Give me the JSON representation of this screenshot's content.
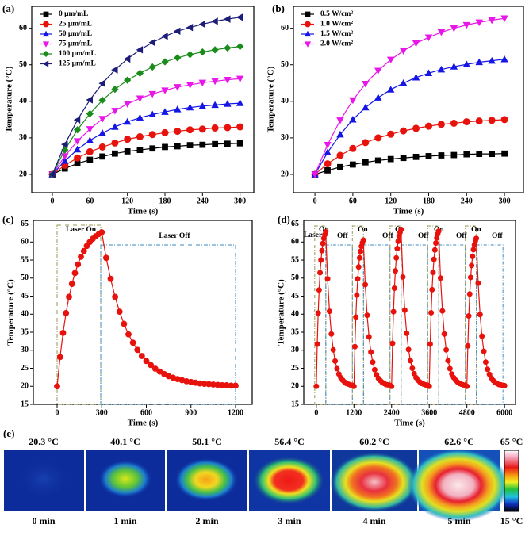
{
  "chart_data": [
    {
      "type": "line",
      "panel_label": "(a)",
      "x_label": "Time (s)",
      "y_label": "Temperature (°C)",
      "xlim": [
        -33,
        322
      ],
      "ylim": [
        15,
        66
      ],
      "xticks": [
        0,
        60,
        120,
        180,
        240,
        300
      ],
      "yticks": [
        20,
        30,
        40,
        50,
        60
      ],
      "legend": "upper left",
      "x": [
        0,
        20,
        40,
        60,
        80,
        100,
        120,
        140,
        160,
        180,
        200,
        220,
        240,
        260,
        280,
        300
      ],
      "series": [
        {
          "name": "0 μm/mL",
          "color": "#000000",
          "marker": "square",
          "values": [
            20,
            21.6,
            23.0,
            24.0,
            24.9,
            25.7,
            26.3,
            26.7,
            27.1,
            27.5,
            27.7,
            28.0,
            28.1,
            28.3,
            28.4,
            28.5
          ]
        },
        {
          "name": "25 μm/mL",
          "color": "#e8120c",
          "marker": "circle",
          "values": [
            20,
            22.5,
            24.5,
            26.2,
            27.5,
            28.6,
            29.6,
            30.3,
            30.9,
            31.4,
            31.8,
            32.2,
            32.4,
            32.7,
            32.8,
            33.0
          ]
        },
        {
          "name": "50 μm/mL",
          "color": "#1515e6",
          "marker": "triangle-up",
          "values": [
            20,
            23.7,
            26.8,
            29.3,
            31.3,
            33.0,
            34.4,
            35.5,
            36.4,
            37.1,
            37.8,
            38.3,
            38.7,
            39.0,
            39.3,
            39.5
          ]
        },
        {
          "name": "75 μm/mL",
          "color": "#e817e8",
          "marker": "triangle-down",
          "values": [
            20,
            25.0,
            29.1,
            32.4,
            35.2,
            37.4,
            39.3,
            40.8,
            42.0,
            43.0,
            43.9,
            44.5,
            45.1,
            45.5,
            45.9,
            46.2
          ]
        },
        {
          "name": "100 μm/mL",
          "color": "#1a8c1a",
          "marker": "diamond",
          "values": [
            20,
            26.7,
            32.2,
            36.6,
            40.3,
            43.3,
            45.8,
            47.7,
            49.4,
            50.8,
            51.9,
            52.8,
            53.5,
            54.1,
            54.6,
            55.0
          ]
        },
        {
          "name": "125 μm/mL",
          "color": "#1c1c7a",
          "marker": "triangle-left",
          "values": [
            20,
            28.2,
            34.9,
            40.4,
            44.9,
            48.6,
            51.6,
            54.1,
            56.1,
            57.8,
            59.2,
            60.2,
            61.1,
            61.9,
            62.5,
            63.0
          ]
        }
      ]
    },
    {
      "type": "line",
      "panel_label": "(b)",
      "x_label": "Time (s)",
      "y_label": "Temperature (°C)",
      "xlim": [
        -34,
        330
      ],
      "ylim": [
        15,
        66
      ],
      "xticks": [
        0,
        60,
        120,
        180,
        240,
        300
      ],
      "yticks": [
        20,
        30,
        40,
        50,
        60
      ],
      "legend": "upper left",
      "x": [
        0,
        20,
        40,
        60,
        80,
        100,
        120,
        140,
        160,
        180,
        200,
        220,
        240,
        260,
        280,
        300
      ],
      "series": [
        {
          "name": "0.5 W/cm²",
          "color": "#000000",
          "marker": "square",
          "values": [
            20,
            21.1,
            22.0,
            22.7,
            23.3,
            23.8,
            24.2,
            24.5,
            24.8,
            25.0,
            25.2,
            25.3,
            25.5,
            25.6,
            25.6,
            25.7
          ]
        },
        {
          "name": "1.0 W/cm²",
          "color": "#e8120c",
          "marker": "circle",
          "values": [
            20,
            22.9,
            25.2,
            27.1,
            28.7,
            30.0,
            31.0,
            31.9,
            32.6,
            33.2,
            33.7,
            34.0,
            34.4,
            34.6,
            34.8,
            35.0
          ]
        },
        {
          "name": "1.5 W/cm²",
          "color": "#1515e6",
          "marker": "triangle-up",
          "values": [
            20,
            26.0,
            30.9,
            35.0,
            38.3,
            41.0,
            43.2,
            45.0,
            46.5,
            47.7,
            48.7,
            49.5,
            50.1,
            50.7,
            51.1,
            51.5
          ]
        },
        {
          "name": "2.0 W/cm²",
          "color": "#e817e8",
          "marker": "triangle-down",
          "values": [
            20,
            28.1,
            34.8,
            40.3,
            44.8,
            48.4,
            51.4,
            53.8,
            55.9,
            57.5,
            58.9,
            60.0,
            60.9,
            61.6,
            62.2,
            62.7
          ]
        }
      ]
    },
    {
      "type": "line",
      "panel_label": "(c)",
      "x_label": "Time (s)",
      "y_label": "Temperature (°C)",
      "xlim": [
        -160,
        1312
      ],
      "ylim": [
        15,
        66
      ],
      "xticks": [
        0,
        300,
        600,
        900,
        1200
      ],
      "yticks": [
        15,
        20,
        25,
        30,
        35,
        40,
        45,
        50,
        55,
        60,
        65
      ],
      "annotations": [
        "Laser On",
        "Laser Off"
      ],
      "x": [
        0,
        20,
        40,
        60,
        80,
        100,
        120,
        140,
        160,
        180,
        200,
        220,
        240,
        260,
        280,
        300,
        330,
        360,
        390,
        420,
        450,
        480,
        510,
        540,
        570,
        600,
        630,
        660,
        690,
        720,
        750,
        780,
        810,
        840,
        870,
        900,
        930,
        960,
        990,
        1020,
        1050,
        1080,
        1110,
        1140,
        1170,
        1200
      ],
      "series": [
        {
          "color": "#e8120c",
          "marker": "circle",
          "values": [
            20,
            28.1,
            34.8,
            40.3,
            44.8,
            48.4,
            51.4,
            53.8,
            55.9,
            57.5,
            58.9,
            60.0,
            60.9,
            61.6,
            62.2,
            62.7,
            55.6,
            49.8,
            44.8,
            40.7,
            37.3,
            34.4,
            32.1,
            30.1,
            28.4,
            27.0,
            25.9,
            24.9,
            24.1,
            23.4,
            22.8,
            22.4,
            22.0,
            21.7,
            21.4,
            21.2,
            21.0,
            20.8,
            20.7,
            20.6,
            20.5,
            20.4,
            20.3,
            20.3,
            20.2,
            20.2
          ]
        }
      ]
    },
    {
      "type": "line",
      "panel_label": "(d)",
      "x_label": "Time (s)",
      "y_label": "Temperature (°C)",
      "xlim": [
        -400,
        6350
      ],
      "ylim": [
        15,
        66
      ],
      "xticks": [
        0,
        1200,
        2400,
        3600,
        4800,
        6000
      ],
      "yticks": [
        15,
        20,
        25,
        30,
        35,
        40,
        45,
        50,
        55,
        60,
        65
      ],
      "annotations": [
        "Laser",
        "On",
        "Off",
        "On",
        "Off",
        "On",
        "Off",
        "On",
        "Off",
        "On",
        "Off"
      ],
      "x": [
        0,
        30,
        60,
        90,
        120,
        150,
        180,
        210,
        240,
        270,
        300,
        360,
        420,
        480,
        540,
        600,
        660,
        720,
        780,
        840,
        900,
        960,
        1020,
        1080,
        1140,
        1200,
        1230,
        1260,
        1290,
        1320,
        1350,
        1380,
        1410,
        1440,
        1470,
        1500,
        1560,
        1620,
        1680,
        1740,
        1800,
        1860,
        1920,
        1980,
        2040,
        2100,
        2160,
        2220,
        2280,
        2340,
        2400,
        2430,
        2460,
        2490,
        2520,
        2550,
        2580,
        2610,
        2640,
        2670,
        2700,
        2760,
        2820,
        2880,
        2940,
        3000,
        3060,
        3120,
        3180,
        3240,
        3300,
        3360,
        3420,
        3480,
        3540,
        3600,
        3630,
        3660,
        3690,
        3720,
        3750,
        3780,
        3810,
        3840,
        3870,
        3900,
        3960,
        4020,
        4080,
        4140,
        4200,
        4260,
        4320,
        4380,
        4440,
        4500,
        4560,
        4620,
        4680,
        4740,
        4800,
        4830,
        4860,
        4890,
        4920,
        4950,
        4980,
        5010,
        5040,
        5070,
        5100,
        5160,
        5220,
        5280,
        5340,
        5400,
        5460,
        5520,
        5580,
        5640,
        5700,
        5760,
        5820,
        5880,
        5940,
        6000
      ],
      "series": [
        {
          "color": "#e8120c",
          "marker": "circle",
          "values": [
            20,
            31.7,
            40.3,
            46.7,
            51.5,
            55.0,
            57.6,
            59.6,
            61.0,
            62.0,
            62.8,
            49.8,
            40.8,
            34.5,
            30.1,
            27.0,
            24.9,
            23.4,
            22.4,
            21.7,
            21.2,
            20.8,
            20.6,
            20.4,
            20.3,
            20,
            31.0,
            39.2,
            45.3,
            49.8,
            53.1,
            55.6,
            57.4,
            58.8,
            59.8,
            60.5,
            48.2,
            39.7,
            33.7,
            29.5,
            26.7,
            24.6,
            23.2,
            22.2,
            21.6,
            21.1,
            20.8,
            20.5,
            20.4,
            20.3,
            20,
            31.9,
            40.7,
            47.2,
            52.0,
            55.6,
            58.2,
            60.2,
            61.6,
            62.7,
            63.5,
            50.3,
            41.1,
            34.7,
            30.2,
            27.1,
            25.0,
            23.5,
            22.4,
            21.7,
            21.2,
            20.8,
            20.6,
            20.4,
            20.3,
            20,
            31.7,
            40.4,
            46.8,
            51.6,
            55.2,
            57.8,
            59.7,
            61.1,
            62.2,
            63.0,
            50.0,
            40.9,
            34.5,
            30.1,
            27.1,
            24.9,
            23.4,
            22.4,
            21.7,
            21.2,
            20.8,
            20.6,
            20.4,
            20.3,
            20,
            31.2,
            39.5,
            45.6,
            50.2,
            53.5,
            56.0,
            57.9,
            59.2,
            60.3,
            61.0,
            48.6,
            39.9,
            33.9,
            29.7,
            26.7,
            24.7,
            23.3,
            22.3,
            21.6,
            21.1,
            20.8,
            20.5,
            20.4,
            20.3,
            20.2
          ]
        }
      ]
    }
  ],
  "thermal": {
    "panel_label": "(e)",
    "temps": [
      "20.3 °C",
      "40.1 °C",
      "50.1 °C",
      "56.4 °C",
      "60.2 °C",
      "62.6 °C"
    ],
    "times": [
      "0 min",
      "1 min",
      "2 min",
      "3 min",
      "4 min",
      "5 min"
    ],
    "scale_max": "65 °C",
    "scale_min": "15 °C"
  }
}
